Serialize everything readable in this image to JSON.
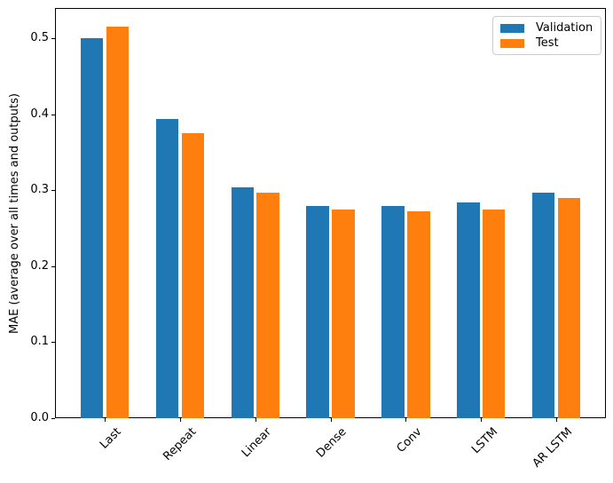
{
  "figure": {
    "background": "#ffffff",
    "accent_blue": "#1f77b4",
    "accent_orange": "#ff7f0e"
  },
  "chart_data": {
    "type": "bar",
    "title": "",
    "categories": [
      "Last",
      "Repeat",
      "Linear",
      "Dense",
      "Conv",
      "LSTM",
      "AR LSTM"
    ],
    "series": [
      {
        "name": "Validation",
        "color": "#1f77b4",
        "values": [
          0.5,
          0.394,
          0.304,
          0.279,
          0.279,
          0.284,
          0.297
        ]
      },
      {
        "name": "Test",
        "color": "#ff7f0e",
        "values": [
          0.515,
          0.375,
          0.297,
          0.275,
          0.272,
          0.275,
          0.29
        ]
      }
    ],
    "xlabel": "",
    "ylabel": "MAE (average over all times and outputs)",
    "ytick_labels": [
      "0.0",
      "0.1",
      "0.2",
      "0.3",
      "0.4",
      "0.5"
    ],
    "ytick_values": [
      0,
      0.1,
      0.2,
      0.3,
      0.4,
      0.5
    ],
    "ylim": [
      0,
      0.54
    ],
    "xtick_rotation": 45,
    "bar_width": 0.3,
    "bar_offset": 0.17,
    "grid": false,
    "legend": {
      "position": "upper right",
      "entries": [
        "Validation",
        "Test"
      ]
    }
  }
}
